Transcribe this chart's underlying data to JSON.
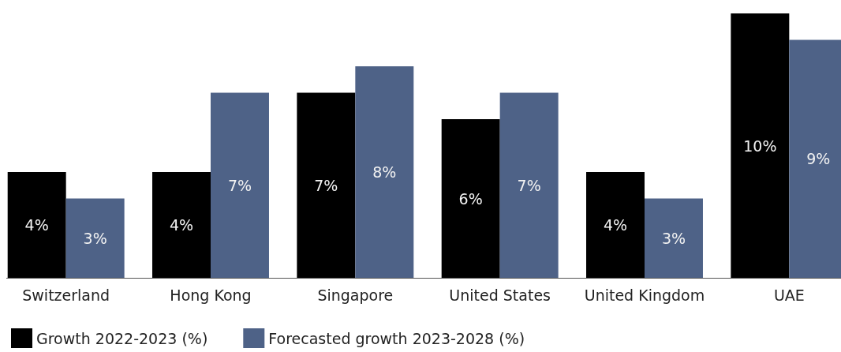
{
  "chart_data": {
    "type": "bar",
    "categories": [
      "Switzerland",
      "Hong Kong",
      "Singapore",
      "United States",
      "United Kingdom",
      "UAE"
    ],
    "series": [
      {
        "name": "Growth 2022-2023 (%)",
        "color": "#000000",
        "values": [
          4,
          4,
          7,
          6,
          4,
          10
        ],
        "value_labels": [
          "4%",
          "4%",
          "7%",
          "6%",
          "4%",
          "10%"
        ]
      },
      {
        "name": "Forecasted growth 2023-2028 (%)",
        "color": "#4e6287",
        "values": [
          3,
          7,
          8,
          7,
          3,
          9
        ],
        "value_labels": [
          "3%",
          "7%",
          "8%",
          "7%",
          "3%",
          "9%"
        ]
      }
    ],
    "legend": "bottom left"
  }
}
